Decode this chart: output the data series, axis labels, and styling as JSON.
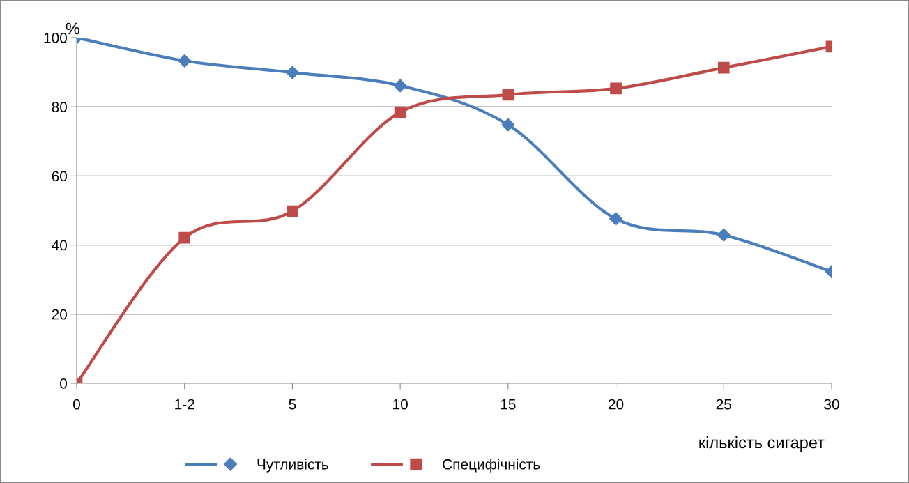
{
  "chart_data": {
    "type": "line",
    "ylabel": "%",
    "xlabel": "кількість сигарет",
    "categories": [
      "0",
      "1-2",
      "5",
      "10",
      "15",
      "20",
      "25",
      "30"
    ],
    "series": [
      {
        "name": "Чутливість",
        "color": "#4a7ebb",
        "marker": "diamond",
        "values": [
          100,
          93.3,
          89.9,
          86.1,
          74.8,
          47.6,
          42.9,
          32.3
        ]
      },
      {
        "name": "Специфічність",
        "color": "#be4b48",
        "marker": "square",
        "values": [
          0,
          42.1,
          49.8,
          78.4,
          83.5,
          85.3,
          91.3,
          97.4
        ]
      }
    ],
    "ylim": [
      0,
      100
    ],
    "yticks": [
      0,
      20,
      40,
      60,
      80,
      100
    ],
    "grid": "y",
    "legend": "bottom"
  }
}
